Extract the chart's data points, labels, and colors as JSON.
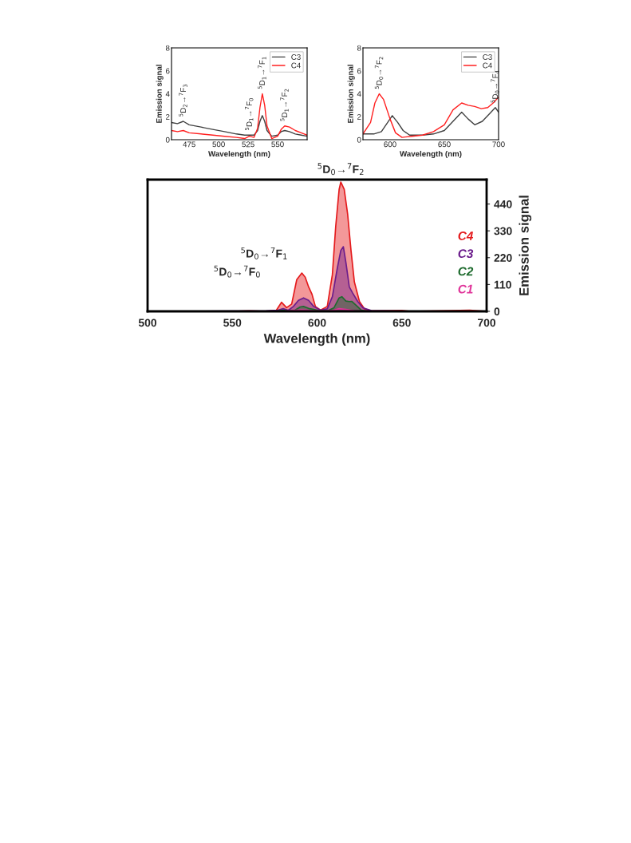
{
  "chart_data": [
    {
      "type": "area",
      "xlabel": "Wavelength (nm)",
      "ylabel": "Emission signal",
      "xlim": [
        500,
        700
      ],
      "xticks": [
        500,
        550,
        600,
        650,
        700
      ],
      "ylim": [
        0,
        540
      ],
      "yticks": [
        0,
        110,
        220,
        330,
        440
      ],
      "grid": false,
      "series": [
        {
          "name": "C4",
          "color": "#e41a1c",
          "x": [
            500,
            550,
            560,
            570,
            576,
            579,
            582,
            585,
            588,
            591,
            593,
            595,
            597,
            599,
            602,
            606,
            609,
            611,
            613,
            614,
            616,
            618,
            620,
            622,
            625,
            628,
            632,
            650,
            655,
            690,
            700
          ],
          "values": [
            0,
            0,
            2,
            0,
            5,
            37,
            15,
            30,
            130,
            157,
            140,
            100,
            70,
            20,
            5,
            20,
            150,
            350,
            500,
            530,
            500,
            400,
            250,
            120,
            40,
            10,
            2,
            4,
            0,
            5,
            0
          ]
        },
        {
          "name": "C3",
          "color": "#6b1d8c",
          "x": [
            500,
            570,
            577,
            580,
            583,
            586,
            589,
            592,
            595,
            598,
            602,
            606,
            609,
            612,
            614,
            615.5,
            617,
            619,
            621,
            624,
            627,
            632,
            660,
            700
          ],
          "values": [
            0,
            2,
            5,
            11,
            4,
            20,
            45,
            55,
            45,
            20,
            5,
            10,
            60,
            180,
            250,
            265,
            200,
            100,
            75,
            40,
            15,
            3,
            0,
            0
          ]
        },
        {
          "name": "C2",
          "color": "#1e6b2e",
          "x": [
            500,
            576,
            580,
            583,
            587,
            590,
            592,
            595,
            598,
            601,
            606,
            610,
            613,
            614.6,
            617,
            619,
            620.4,
            623,
            626,
            630,
            700
          ],
          "values": [
            0,
            0,
            5,
            0,
            5,
            18,
            20,
            12,
            8,
            3,
            2,
            15,
            55,
            60,
            42,
            40,
            41,
            25,
            5,
            0,
            0
          ]
        },
        {
          "name": "C1",
          "color": "#e0359a",
          "x": [
            500,
            580,
            585,
            591,
            597,
            605,
            610,
            613,
            617,
            622,
            630,
            700
          ],
          "values": [
            0,
            0,
            3,
            6,
            3,
            1,
            5,
            11,
            8,
            2,
            0,
            0
          ]
        }
      ],
      "annotations": [
        {
          "text": "$^{5}$D$_{0}$→$^{7}$F$_{0}$",
          "x": 579,
          "y": 37
        },
        {
          "text": "$^{5}$D$_{0}$→$^{7}$F$_{1}$",
          "x": 591,
          "y": 157
        },
        {
          "text": "$^{5}$D$_{0}$→$^{7}$F$_{2}$",
          "x": 614,
          "y": 530
        }
      ]
    },
    {
      "type": "line",
      "xlabel": "Wavelength (nm)",
      "ylabel": "Emission signal",
      "xlim": [
        460,
        575
      ],
      "xticks": [
        475,
        500,
        525,
        550
      ],
      "ylim": [
        0,
        8
      ],
      "yticks": [
        0,
        2,
        4,
        6,
        8
      ],
      "legend": "top right",
      "series": [
        {
          "name": "C3",
          "color": "#404040",
          "x": [
            460,
            465,
            470,
            475,
            485,
            495,
            505,
            515,
            522,
            526,
            530,
            533,
            535,
            537,
            539,
            541,
            545,
            550,
            553,
            556,
            560,
            565,
            570,
            575
          ],
          "values": [
            1.5,
            1.4,
            1.6,
            1.3,
            1.1,
            0.9,
            0.7,
            0.5,
            0.4,
            0.4,
            0.4,
            0.8,
            1.6,
            2.1,
            1.6,
            0.8,
            0.3,
            0.4,
            0.7,
            0.8,
            0.7,
            0.5,
            0.4,
            0.3
          ]
        },
        {
          "name": "C4",
          "color": "#ff2020",
          "x": [
            460,
            465,
            470,
            475,
            485,
            495,
            505,
            515,
            522,
            526,
            530,
            533,
            535,
            537,
            539,
            541,
            545,
            550,
            553,
            556,
            560,
            565,
            570,
            575
          ],
          "values": [
            0.8,
            0.7,
            0.8,
            0.6,
            0.5,
            0.4,
            0.3,
            0.2,
            0.1,
            0.3,
            0.2,
            1.0,
            2.8,
            4.0,
            3.0,
            1.2,
            0.1,
            0.3,
            0.9,
            1.2,
            1.1,
            0.8,
            0.6,
            0.4
          ]
        }
      ],
      "annotations": [
        {
          "text": "$^{5}$D$_{2}$→$^{7}$F$_{3}$",
          "x": 470,
          "y": 1.6
        },
        {
          "text": "$^{5}$D$_{1}$→$^{7}$F$_{0}$",
          "x": 526,
          "y": 0.4
        },
        {
          "text": "$^{5}$D$_{1}$→$^{7}$F$_{1}$",
          "x": 537,
          "y": 4.0
        },
        {
          "text": "$^{5}$D$_{1}$→$^{7}$F$_{2}$",
          "x": 556,
          "y": 1.2
        }
      ]
    },
    {
      "type": "line",
      "xlabel": "Wavelength (nm)",
      "ylabel": "Emission signal",
      "xlim": [
        575,
        700
      ],
      "xticks": [
        600,
        650,
        700
      ],
      "ylim": [
        0,
        8
      ],
      "yticks": [
        0,
        2,
        4,
        6,
        8
      ],
      "legend": "top right",
      "series": [
        {
          "name": "C3",
          "color": "#404040",
          "x": [
            575,
            585,
            592,
            597,
            602,
            607,
            612,
            618,
            630,
            640,
            650,
            658,
            666,
            672,
            678,
            685,
            692,
            697,
            700
          ],
          "values": [
            0.5,
            0.5,
            0.7,
            1.4,
            2.1,
            1.5,
            0.8,
            0.4,
            0.4,
            0.5,
            0.8,
            1.6,
            2.4,
            1.8,
            1.3,
            1.6,
            2.3,
            2.8,
            2.4
          ]
        },
        {
          "name": "C4",
          "color": "#ff2020",
          "x": [
            575,
            582,
            586,
            590,
            594,
            600,
            605,
            611,
            620,
            630,
            640,
            650,
            658,
            666,
            672,
            678,
            684,
            690,
            695,
            700
          ],
          "values": [
            0.5,
            1.5,
            3.2,
            4.0,
            3.5,
            1.8,
            0.6,
            0.2,
            0.3,
            0.4,
            0.7,
            1.3,
            2.6,
            3.2,
            3.0,
            2.9,
            2.7,
            2.8,
            3.2,
            3.7
          ]
        }
      ],
      "annotations": [
        {
          "text": "$^{5}$D$_{0}$→$^{7}$F$_{2}$",
          "x": 590,
          "y": 4.0
        },
        {
          "text": "$^{5}$D$_{0}$→$^{7}$F$_{4}$",
          "x": 697,
          "y": 2.8
        }
      ]
    }
  ]
}
